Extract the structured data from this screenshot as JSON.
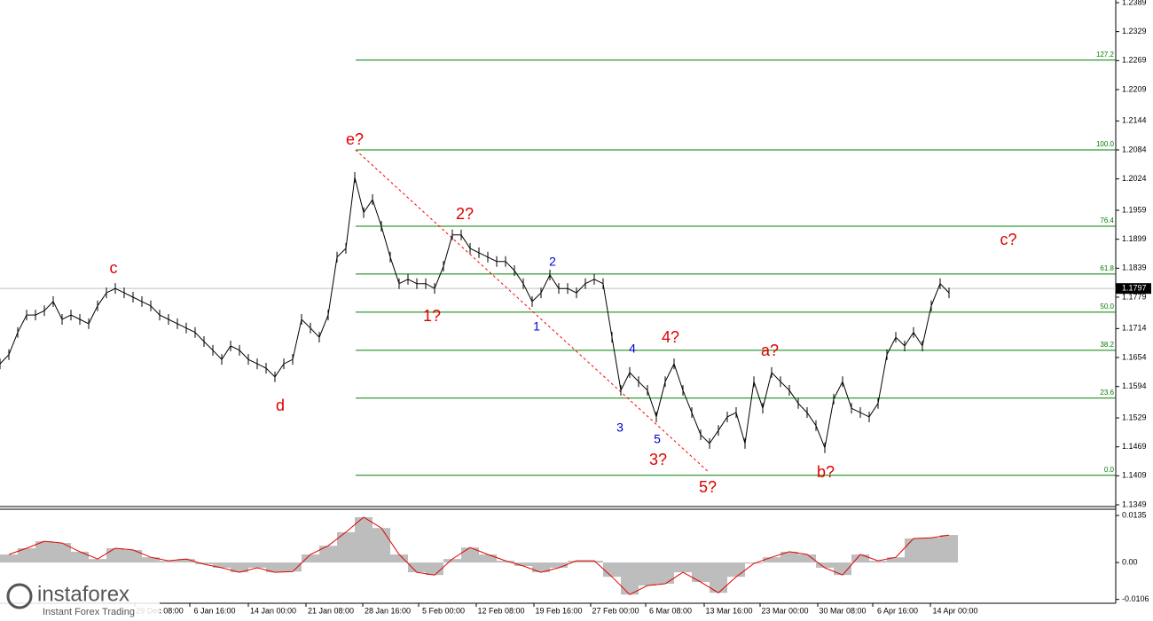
{
  "chart_data": {
    "type": "line",
    "price_ylim": [
      1.1349,
      1.2389
    ],
    "price_yticks": [
      1.2389,
      1.2329,
      1.2269,
      1.2209,
      1.2144,
      1.2084,
      1.2024,
      1.1959,
      1.1899,
      1.1839,
      1.1779,
      1.1714,
      1.1654,
      1.1594,
      1.1529,
      1.1469,
      1.1409,
      1.1349
    ],
    "x_labels": [
      "29 Dec 08:00",
      "6 Jan 16:00",
      "14 Jan 00:00",
      "21 Jan 08:00",
      "28 Jan 16:00",
      "5 Feb 00:00",
      "12 Feb 08:00",
      "19 Feb 16:00",
      "27 Feb 00:00",
      "6 Mar 08:00",
      "13 Mar 16:00",
      "23 Mar 00:00",
      "30 Mar 08:00",
      "6 Apr 16:00",
      "14 Apr 00:00"
    ],
    "price": {
      "color": "#000000",
      "values": [
        1.1641,
        1.166,
        1.1706,
        1.1742,
        1.1742,
        1.1751,
        1.177,
        1.1733,
        1.1742,
        1.1733,
        1.1724,
        1.1761,
        1.1788,
        1.1797,
        1.1788,
        1.1779,
        1.177,
        1.1761,
        1.1742,
        1.1733,
        1.1724,
        1.1715,
        1.1706,
        1.1687,
        1.1669,
        1.165,
        1.1678,
        1.1669,
        1.165,
        1.1641,
        1.1632,
        1.1614,
        1.1641,
        1.165,
        1.1733,
        1.1715,
        1.1696,
        1.1742,
        1.1862,
        1.188,
        1.2027,
        1.1954,
        1.1981,
        1.1926,
        1.1862,
        1.1807,
        1.1816,
        1.1807,
        1.1807,
        1.1797,
        1.1843,
        1.1908,
        1.1908,
        1.188,
        1.1871,
        1.1862,
        1.1853,
        1.1853,
        1.1834,
        1.1807,
        1.177,
        1.1788,
        1.1825,
        1.1797,
        1.1797,
        1.1788,
        1.1807,
        1.1816,
        1.1807,
        1.1696,
        1.1586,
        1.1623,
        1.1604,
        1.1586,
        1.1531,
        1.1604,
        1.1641,
        1.1586,
        1.154,
        1.1494,
        1.1476,
        1.1503,
        1.1531,
        1.154,
        1.1476,
        1.1604,
        1.1549,
        1.1623,
        1.1604,
        1.1586,
        1.1559,
        1.154,
        1.1513,
        1.1467,
        1.1568,
        1.1604,
        1.1549,
        1.154,
        1.1531,
        1.1559,
        1.166,
        1.1696,
        1.1678,
        1.1706,
        1.1678,
        1.1761,
        1.1807,
        1.1788
      ]
    },
    "current_price": 1.1797,
    "fib_color": "#008000",
    "fib_levels": [
      {
        "label": "127.2",
        "price": 1.227
      },
      {
        "label": "100.0",
        "price": 1.2084
      },
      {
        "label": "76.4",
        "price": 1.1926
      },
      {
        "label": "61.8",
        "price": 1.1827
      },
      {
        "label": "50.0",
        "price": 1.1748
      },
      {
        "label": "38.2",
        "price": 1.1669
      },
      {
        "label": "23.6",
        "price": 1.157
      },
      {
        "label": "0.0",
        "price": 1.141
      }
    ],
    "wave_labels": [
      "c",
      "d",
      "e?",
      "2?",
      "1?",
      "1",
      "2",
      "3",
      "4",
      "5",
      "3?",
      "4?",
      "5?",
      "a?",
      "b?",
      "c?"
    ],
    "oscillator": {
      "color": "#bdbdbd",
      "line_color": "#e00000",
      "ylim": [
        -0.0117,
        0.0153
      ],
      "yticks": [
        {
          "value": 0.0135,
          "label": "0.0135"
        },
        {
          "value": 0,
          "label": "0.00"
        },
        {
          "value": -0.0106,
          "label": "-0.0106"
        }
      ],
      "values": [
        0.0023,
        0.0041,
        0.0061,
        0.0056,
        0.0031,
        0.001,
        0.0041,
        0.0036,
        0.0015,
        0.0005,
        0.001,
        -0.0005,
        -0.0015,
        -0.0028,
        -0.0015,
        -0.0028,
        -0.0026,
        0.0023,
        0.0048,
        0.0087,
        0.013,
        0.0099,
        0.0023,
        -0.0028,
        -0.0036,
        0.001,
        0.0043,
        0.0023,
        0.0005,
        -0.001,
        -0.0028,
        -0.0015,
        0.0005,
        0.0005,
        -0.0041,
        -0.0092,
        -0.0066,
        -0.0061,
        -0.0028,
        -0.0056,
        -0.0087,
        -0.0041,
        -0.0003,
        0.0015,
        0.0031,
        0.0023,
        -0.0015,
        -0.0036,
        0.0023,
        0.0005,
        0.0015,
        0.0069,
        0.0071,
        0.0079
      ]
    },
    "logo": {
      "name": "instaforex",
      "tagline": "Instant Forex Trading"
    }
  }
}
